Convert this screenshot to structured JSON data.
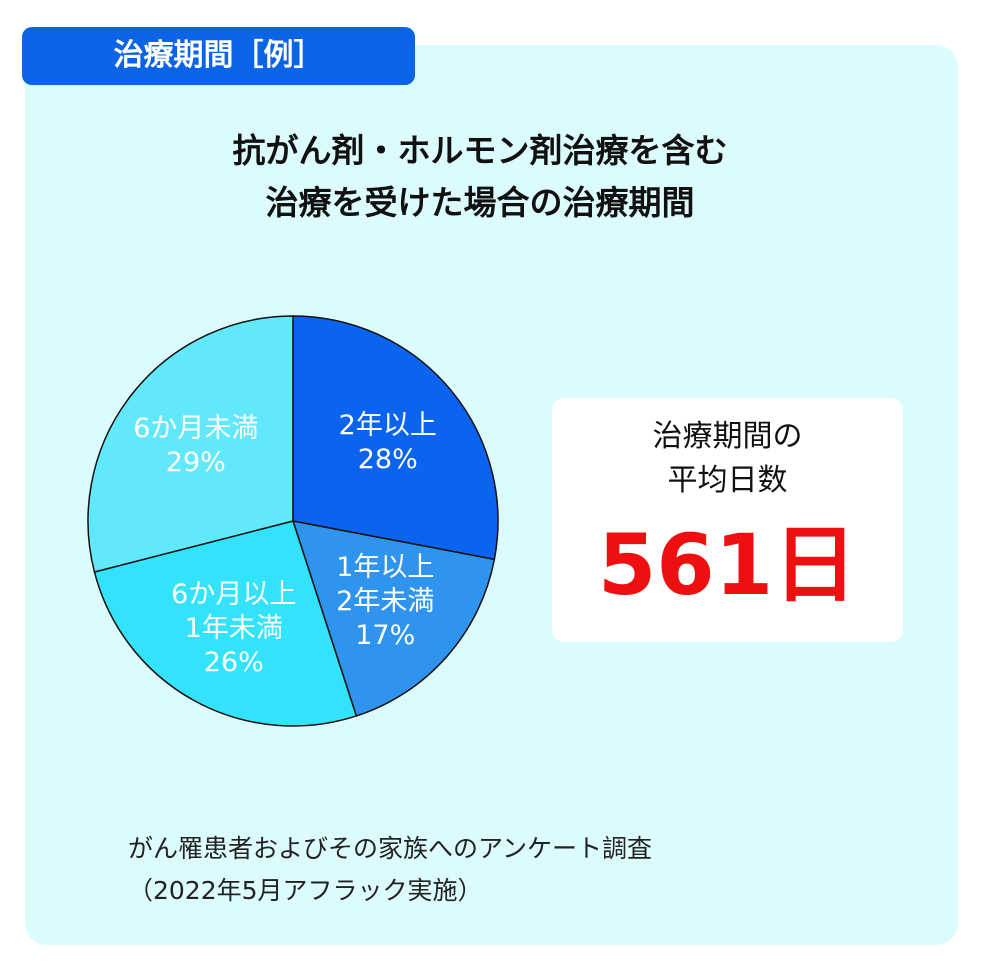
{
  "header": {
    "tag": "治療期間［例］"
  },
  "chart_data": {
    "type": "pie",
    "title": "抗がん剤・ホルモン剤治療を含む\n治療を受けた場合の治療期間",
    "categories": [
      "2年以上",
      "1年以上\n2年未満",
      "6か月以上\n1年未満",
      "6か月未満"
    ],
    "values": [
      28,
      17,
      26,
      29
    ],
    "value_labels": [
      "28%",
      "17%",
      "26%",
      "29%"
    ],
    "colors": [
      "#0a64f0",
      "#2f94ee",
      "#33e2fb",
      "#62e8fb"
    ]
  },
  "summary": {
    "label": "治療期間の\n平均日数",
    "value": "561日"
  },
  "source": "がん罹患者およびその家族へのアンケート調査\n（2022年5月アフラック実施）"
}
